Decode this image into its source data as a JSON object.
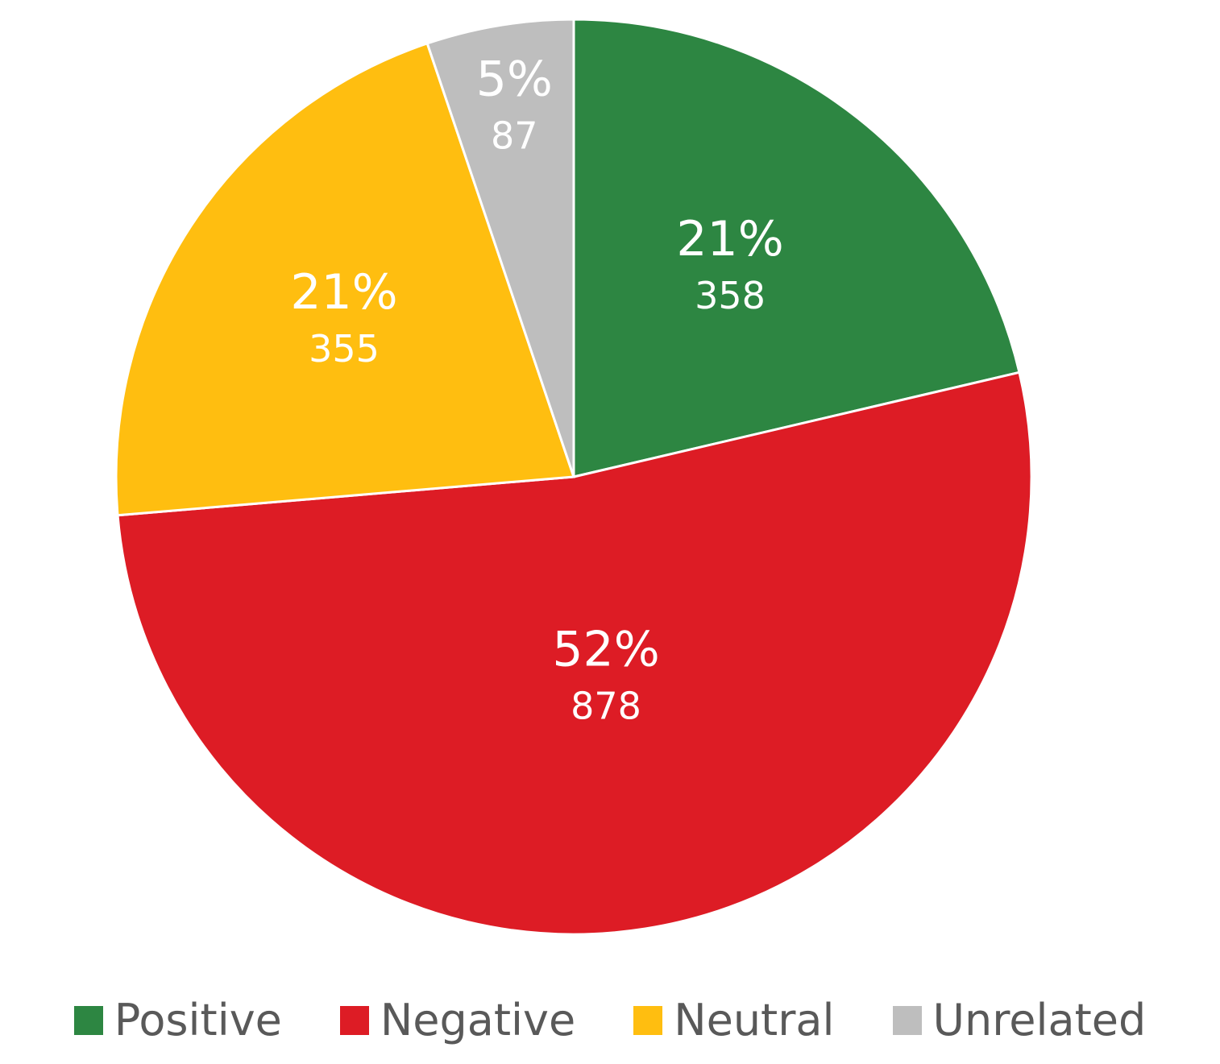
{
  "chart_data": {
    "type": "pie",
    "title": "",
    "start_angle_deg": 0,
    "direction": "clockwise",
    "legend_position": "bottom",
    "slices": [
      {
        "name": "Positive",
        "value": 358,
        "percent_label": "21%",
        "count_label": "358",
        "color": "#2D8642"
      },
      {
        "name": "Negative",
        "value": 878,
        "percent_label": "52%",
        "count_label": "878",
        "color": "#DD1C25"
      },
      {
        "name": "Neutral",
        "value": 355,
        "percent_label": "21%",
        "count_label": "355",
        "color": "#FFBE10"
      },
      {
        "name": "Unrelated",
        "value": 87,
        "percent_label": "5%",
        "count_label": "87",
        "color": "#BEBEBE"
      }
    ]
  }
}
